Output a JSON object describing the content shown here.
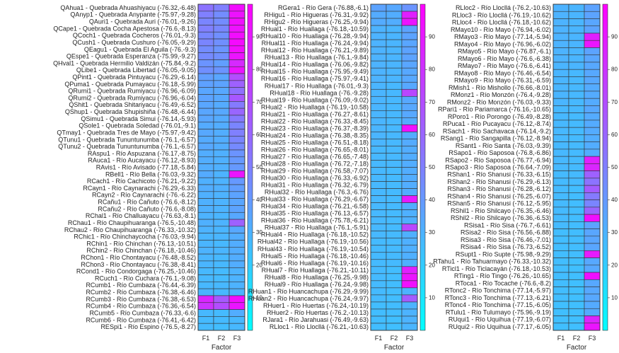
{
  "colors": {
    "low": "#00ffff",
    "high": "#ff00ff",
    "grid": "#333333"
  },
  "chart_data": [
    {
      "type": "heatmap",
      "title": "",
      "xlabel": "Factor",
      "ylabel": "",
      "columns": [
        "F1",
        "F2",
        "F3"
      ],
      "clim": [
        0,
        100
      ],
      "colorbar_ticks": [
        10,
        20,
        30,
        40,
        50,
        60,
        70,
        80,
        90
      ],
      "rows": [
        "QAhua1 - Quebrada Ahuashiyacu (-76.32,-6.48)",
        "QAnyp1 - Quebrada Anypante (-75.97,-9.28)",
        "QAuri1 - Quebrada Auri (-76.01,-9.26)",
        "QCape1 - Quebrada Cocha Apestosa (-76.6,-8.13)",
        "QCoch1 - Quebrada Cocheros (-76.01,-9.3)",
        "QCush1 - Quebrada Cushuro (-76.05,-9.29)",
        "QEagu1 - Quebrada El Aguila (-76.-9.3)",
        "QEspe1 - Quebrada Esperanza (-75.99,-9.27)",
        "QHval1 - Quebrada Hermilio Valdizán (-75.84,-9.2)",
        "QLibe1 - Quebrada Libertad (-76.05,-9.05)",
        "QPint1 - Quebrada Pintuyacu (-76.29,-6.14)",
        "QPuma1 - Quebrada Pumayacu (-76.18,-5.99)",
        "QRumi1 - Quebrada Rumiyacu (-76.96,-6.09)",
        "QRumi2 - Quebrada Rumiyacu (-76.96,-6.04)",
        "QShit1 - Quebrada Shitariyacu (-76.49,-6.52)",
        "QShup1 - Quebrada Shupishiña (-76.48,-6.44)",
        "QSimu1 - Quebrada Simui (-76.14,-5.93)",
        "QSole1 - Quebrada Soledad (-76.01,-9.1)",
        "QTmay1 - Quebrada Tres de Mayo (-75.97,-9.42)",
        "QTunu1 - Quebrada Tununtunumba (-76.1,-6.57)",
        "QTunu2 - Quebrada Tununtunumba (-76.1,-6.57)",
        "RAspu1 - Río Aspuzana (-76.17,-8.75)",
        "RAuca1 - Río Aucayacu (-76.12,-8.93)",
        "RAvis1 - Río Avisado (-77.18,-5.84)",
        "RBell1 - Río Bella (-76.03,-9.32)",
        "RCach1 - Río Cachicoto (-76.21,-9.22)",
        "RCayn1 - Río Caynarachi (-76.29,-6.33)",
        "RCayn2 - Río Caynarachi (-76.-6.22)",
        "RCañu1 - Río Cañuto (-76.6,-8.12)",
        "RCañu2 - Río Cañuto (-76.6,-8.08)",
        "RChal1 - Río Challuayacu (-76.63,-8.1)",
        "RChau1 - Río Chaupihuaranga (-76.5,-10.48)",
        "RChau2 - Río Chaupihuaranga (-76.33,-10.32)",
        "RChic1 - Río Chinchaycocha (-76.03,-9.94)",
        "RChin1 - Río Chinchan (-76.13,-10.51)",
        "RChin2 - Río Chinchan (-76.18,-10.46)",
        "RChon1 - Río Chontayacu (-76.48,-8.52)",
        "RChon3 - Río Chontayacu (-76.38,-8.41)",
        "RCond1 - Río Condorgaga (-76.25,-10.46)",
        "RCuch1 - Río Cuchara (-76.1,-9.08)",
        "RCumb1 - Río Cumbaza (-76.44,-6.39)",
        "RCumb2 - Río Cumbaza (-76.38,-6.46)",
        "RCumb3 - Río Cumbaza (-76.38,-6.53)",
        "RCumb4 - Río Cumbaza (-76.36,-6.54)",
        "RCumb5 - Río Cumbaza (-76.33,-6.6)",
        "RCumb6 - Río Cumbaza (-76.41,-6.42)",
        "RESpi1 - Río Espino (-76.5,-8.27)"
      ],
      "values": [
        [
          55,
          50,
          95
        ],
        [
          50,
          45,
          93
        ],
        [
          48,
          45,
          94
        ],
        [
          50,
          47,
          93
        ],
        [
          47,
          44,
          95
        ],
        [
          48,
          44,
          96
        ],
        [
          45,
          42,
          95
        ],
        [
          46,
          44,
          92
        ],
        [
          42,
          38,
          84
        ],
        [
          44,
          42,
          92
        ],
        [
          38,
          35,
          70
        ],
        [
          37,
          36,
          62
        ],
        [
          35,
          34,
          56
        ],
        [
          36,
          34,
          66
        ],
        [
          35,
          33,
          52
        ],
        [
          35,
          34,
          60
        ],
        [
          35,
          33,
          52
        ],
        [
          33,
          32,
          48
        ],
        [
          34,
          32,
          50
        ],
        [
          33,
          32,
          48
        ],
        [
          34,
          32,
          46
        ],
        [
          32,
          31,
          42
        ],
        [
          32,
          31,
          40
        ],
        [
          32,
          31,
          40
        ],
        [
          33,
          30,
          92
        ],
        [
          31,
          30,
          40
        ],
        [
          32,
          31,
          38
        ],
        [
          31,
          30,
          36
        ],
        [
          31,
          30,
          35
        ],
        [
          31,
          30,
          36
        ],
        [
          30,
          29,
          34
        ],
        [
          31,
          30,
          62
        ],
        [
          30,
          29,
          34
        ],
        [
          29,
          29,
          32
        ],
        [
          29,
          28,
          32
        ],
        [
          30,
          29,
          32
        ],
        [
          29,
          28,
          32
        ],
        [
          29,
          28,
          32
        ],
        [
          28,
          27,
          30
        ],
        [
          28,
          27,
          30
        ],
        [
          28,
          28,
          30
        ],
        [
          29,
          28,
          30
        ],
        [
          85,
          65,
          95
        ],
        [
          80,
          70,
          92
        ],
        [
          28,
          27,
          32
        ],
        [
          27,
          27,
          28
        ],
        [
          27,
          26,
          28
        ]
      ]
    },
    {
      "type": "heatmap",
      "title": "",
      "xlabel": "Factor",
      "ylabel": "",
      "columns": [
        "F1",
        "F2",
        "F3"
      ],
      "clim": [
        0,
        100
      ],
      "colorbar_ticks": [
        10,
        20,
        30,
        40,
        50,
        60,
        70,
        80,
        90
      ],
      "rows": [
        "RGera1 - Río Gera (-76.88,-6.1)",
        "RHigu1 - Río Higueras (-76.31,-9.92)",
        "RHigu2 - Río Higueras (-76.25,-9.94)",
        "RHual1 - Río Huallaga (-76.18,-10.59)",
        "RHual10 - Río Huallaga (-76.28,-9.94)",
        "RHual11 - Río Huallaga (-76.24,-9.94)",
        "RHual12 - Río Huallaga (-76.21,-9.89)",
        "RHual13 - Río Huallaga (-76.1,-9.84)",
        "RHual14 - Río Huallaga (-76.06,-9.82)",
        "RHual15 - Río Huallaga (-75.95,-9.49)",
        "RHual16 - Río Huallaga (-75.97,-9.41)",
        "RHual17 - Río Huallaga (-76.01,-9.3)",
        "RHual18 - Río Huallaga (-76.-9.28)",
        "RHual19 - Río Huallaga (-76.09,-9.02)",
        "RHual2 - Río Huallaga (-76.19,-10.58)",
        "RHual21 - Río Huallaga (-76.27,-8.61)",
        "RHual22 - Río Huallaga (-76.33,-8.45)",
        "RHual23 - Río Huallaga (-76.37,-8.39)",
        "RHual24 - Río Huallaga (-76.38,-8.35)",
        "RHual25 - Río Huallaga (-76.51,-8.18)",
        "RHual26 - Río Huallaga (-76.65,-8.01)",
        "RHual27 - Río Huallaga (-76.65,-7.48)",
        "RHual28 - Río Huallaga (-76.72,-7.18)",
        "RHual29 - Río Huallaga (-76.58,-7.07)",
        "RHual30 - Río Huallaga (-76.33,-6.92)",
        "RHual31 - Río Huallaga (-76.32,-6.79)",
        "RHual32 - Río Huallaga (-76.3,-6.76)",
        "RHual33 - Río Huallaga (-76.29,-6.67)",
        "RHual34 - Río Huallaga (-76.21,-6.58)",
        "RHual35 - Río Huallaga (-76.13,-6.57)",
        "RHual36 - Río Huallaga (-75.78,-6.21)",
        "RHual37 - Río Huallaga (-76.1,-5.91)",
        "RHual4 - Río Huallaga (-76.18,-10.52)",
        "RHual42 - Río Huallaga (-76.19,-10.56)",
        "RHual43 - Río Huallaga (-76.19,-10.54)",
        "RHual5 - Río Huallaga (-76.18,-10.46)",
        "RHual6 - Río Huallaga (-76.19,-10.16)",
        "RHual7 - Río Huallaga (-76.21,-10.11)",
        "RHual8 - Río Huallaga (-76.25,-9.98)",
        "RHual9 - Río Huallaga (-76.24,-9.98)",
        "RHuan1 - Río Huancachupa (-76.29,-9.99)",
        "RHuan2 - Río Huancachupa (-76.24,-9.97)",
        "RHuer1 - Río Huertas (-76.24,-10.19)",
        "RHuer2 - Río Huertas (-76.2,-10.13)",
        "RJara1 - Río Jarahuasi (-76.49,-9.63)",
        "RLloc1 - Río Llocllá (-76.21,-10.63)"
      ],
      "values": [
        [
          36,
          34,
          42
        ],
        [
          33,
          32,
          88
        ],
        [
          33,
          32,
          92
        ],
        [
          30,
          29,
          36
        ],
        [
          30,
          29,
          36
        ],
        [
          30,
          29,
          35
        ],
        [
          30,
          29,
          36
        ],
        [
          30,
          29,
          36
        ],
        [
          30,
          29,
          35
        ],
        [
          30,
          29,
          34
        ],
        [
          30,
          29,
          34
        ],
        [
          29,
          28,
          34
        ],
        [
          29,
          28,
          72
        ],
        [
          29,
          28,
          34
        ],
        [
          29,
          28,
          34
        ],
        [
          29,
          28,
          34
        ],
        [
          29,
          28,
          33
        ],
        [
          29,
          28,
          94
        ],
        [
          29,
          28,
          33
        ],
        [
          29,
          28,
          33
        ],
        [
          28,
          28,
          32
        ],
        [
          28,
          28,
          32
        ],
        [
          28,
          28,
          32
        ],
        [
          28,
          27,
          32
        ],
        [
          28,
          27,
          32
        ],
        [
          28,
          27,
          32
        ],
        [
          28,
          27,
          32
        ],
        [
          28,
          27,
          90
        ],
        [
          28,
          27,
          32
        ],
        [
          28,
          27,
          31
        ],
        [
          28,
          27,
          31
        ],
        [
          28,
          27,
          72
        ],
        [
          28,
          27,
          31
        ],
        [
          27,
          27,
          31
        ],
        [
          27,
          27,
          31
        ],
        [
          27,
          27,
          31
        ],
        [
          27,
          27,
          31
        ],
        [
          27,
          26,
          88
        ],
        [
          27,
          26,
          92
        ],
        [
          27,
          26,
          94
        ],
        [
          27,
          26,
          30
        ],
        [
          27,
          26,
          64
        ],
        [
          26,
          26,
          30
        ],
        [
          26,
          26,
          30
        ],
        [
          26,
          25,
          30
        ],
        [
          26,
          25,
          29
        ]
      ]
    },
    {
      "type": "heatmap",
      "title": "",
      "xlabel": "Factor",
      "ylabel": "",
      "columns": [
        "F1",
        "F2",
        "F3"
      ],
      "clim": [
        0,
        100
      ],
      "colorbar_ticks": [
        10,
        20,
        30,
        40,
        50,
        60,
        70,
        80,
        90
      ],
      "rows": [
        "RLloc2 - Río Llocllá (-76.2,-10.63)",
        "RLloc3 - Río Llocllá (-76.19,-10.62)",
        "RLloc4 - Río Llocllá (-76.18,-10.62)",
        "RMayo10 - Río Mayo (-76.94,-6.02)",
        "RMayo3 - Río Mayo (-77.14,-5.94)",
        "RMayo4 - Río Mayo (-76.96,-6.02)",
        "RMayo5 - Río Mayo (-76.87,-6.1)",
        "RMayo6 - Río Mayo (-76.6,-6.38)",
        "RMayo7 - Río Mayo (-76.6,-6.41)",
        "RMayo8 - Río Mayo (-76.46,-6.54)",
        "RMayo9 - Río Mayo (-76.31,-6.59)",
        "RMish1 - Río Mishollo (-76.66,-8.01)",
        "RMonz1 - Río Monzón (-76.4,-9.28)",
        "RMonz2 - Río Monzón (-76.03,-9.33)",
        "RPari1 - Río Pariamarca (-76.16,-10.65)",
        "RPoro1 - Río Porongo (-76.49,-8.28)",
        "RPuca1 - Río Pucayacu (-76.12,-8.74)",
        "RSach1 - Río Sachavaca (-76.14,-9.2)",
        "RSang1 - Río Sangapilla (-76.12,-8.94)",
        "RSant1 - Río Santa (-76.03,-9.39)",
        "RSapo1 - Río Saposoa (-76.8,-6.86)",
        "RSapo2 - Río Saposoa (-76.77,-6.94)",
        "RSapo3 - Río Saposoa (-76.64,-7.09)",
        "RShan1 - Río Shanusi (-76.33,-6.15)",
        "RShan2 - Río Shanusi (-76.29,-6.13)",
        "RShan3 - Río Shanusi (-76.28,-6.12)",
        "RShan4 - Río Shanusi (-76.25,-6.07)",
        "RShan5 - Río Shanusi (-76.12,-5.95)",
        "RShil1 - Río Shilcayo (-76.35,-6.46)",
        "RShil2 - Río Shilcayo (-76.36,-6.53)",
        "RSisa1 - Río Sisa (-76.7,-6.61)",
        "RSisa2 - Río Sisa (-76.56,-6.88)",
        "RSisa3 - Río Sisa (-76.46,-7.01)",
        "RSisa4 - Río Sisa (-76.73,-6.52)",
        "RSupt1 - Río Supte (-75.98,-9.29)",
        "RTahu1 - Río Tahuarmayo (-76.33,-10.32)",
        "RTicl1 - Río Ticlacayán (-76.18,-10.53)",
        "RTing1 - Río Tingo (-76.26,-10.65)",
        "RToca1 - Río Tocache (-76.6,-8.2)",
        "RTonc2 - Río Tonchima (-77.14,-5.97)",
        "RTonc3 - Río Tonchima (-77.13,-6.21)",
        "RTonc4 - Río Tonchima (-77.15,-6.05)",
        "RTulu1 - Río Tulumayo (-75.96,-9.19)",
        "RUqui1 - Río Uquihua (-77.19,-6.07)",
        "RUqui2 - Río Uquihua (-77.17,-6.05)"
      ],
      "values": [
        [
          30,
          29,
          36
        ],
        [
          30,
          29,
          36
        ],
        [
          30,
          29,
          35
        ],
        [
          30,
          29,
          36
        ],
        [
          30,
          29,
          88
        ],
        [
          30,
          29,
          92
        ],
        [
          30,
          29,
          36
        ],
        [
          30,
          29,
          35
        ],
        [
          29,
          29,
          34
        ],
        [
          29,
          28,
          34
        ],
        [
          29,
          28,
          34
        ],
        [
          29,
          28,
          33
        ],
        [
          29,
          28,
          33
        ],
        [
          29,
          28,
          33
        ],
        [
          28,
          28,
          34
        ],
        [
          28,
          27,
          33
        ],
        [
          28,
          27,
          33
        ],
        [
          28,
          27,
          33
        ],
        [
          28,
          27,
          32
        ],
        [
          28,
          27,
          32
        ],
        [
          28,
          27,
          32
        ],
        [
          28,
          27,
          88
        ],
        [
          28,
          27,
          85
        ],
        [
          27,
          27,
          62
        ],
        [
          27,
          27,
          55
        ],
        [
          27,
          26,
          64
        ],
        [
          27,
          26,
          52
        ],
        [
          27,
          26,
          48
        ],
        [
          27,
          26,
          60
        ],
        [
          27,
          26,
          94
        ],
        [
          27,
          26,
          36
        ],
        [
          26,
          26,
          35
        ],
        [
          26,
          26,
          35
        ],
        [
          26,
          26,
          35
        ],
        [
          26,
          26,
          90
        ],
        [
          26,
          25,
          34
        ],
        [
          26,
          25,
          34
        ],
        [
          26,
          25,
          94
        ],
        [
          26,
          25,
          34
        ],
        [
          26,
          25,
          34
        ],
        [
          26,
          25,
          34
        ],
        [
          25,
          25,
          33
        ],
        [
          25,
          25,
          33
        ],
        [
          25,
          25,
          86
        ],
        [
          25,
          25,
          92
        ]
      ]
    }
  ]
}
